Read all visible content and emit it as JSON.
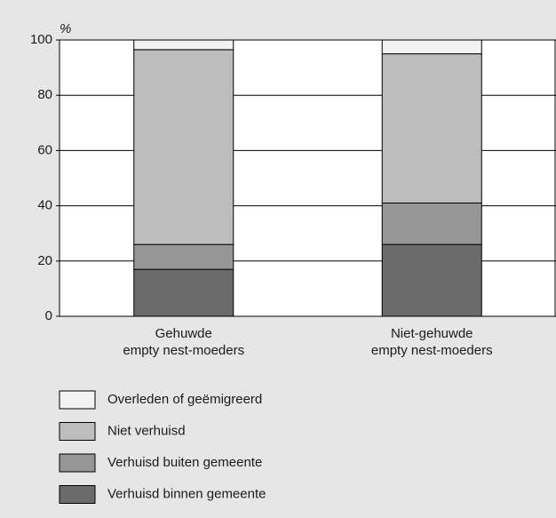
{
  "chart_data": {
    "type": "stacked-bar",
    "y_label": "%",
    "categories": [
      [
        "Gehuwde",
        "empty nest-moeders"
      ],
      [
        "Niet-gehuwde",
        "empty nest-moeders"
      ]
    ],
    "series": [
      {
        "name": "Verhuisd binnen gemeente",
        "color": "#6b6b6b",
        "values": [
          17,
          26
        ]
      },
      {
        "name": "Verhuisd buiten gemeente",
        "color": "#969696",
        "values": [
          9,
          15
        ]
      },
      {
        "name": "Niet verhuisd",
        "color": "#bdbdbd",
        "values": [
          70.5,
          54
        ]
      },
      {
        "name": "Overleden of geëmigreerd",
        "color": "#f2f2f2",
        "values": [
          3.5,
          5
        ]
      }
    ],
    "ylim": [
      0,
      100
    ],
    "yticks": [
      0,
      20,
      40,
      60,
      80,
      100
    ],
    "grid": true
  }
}
